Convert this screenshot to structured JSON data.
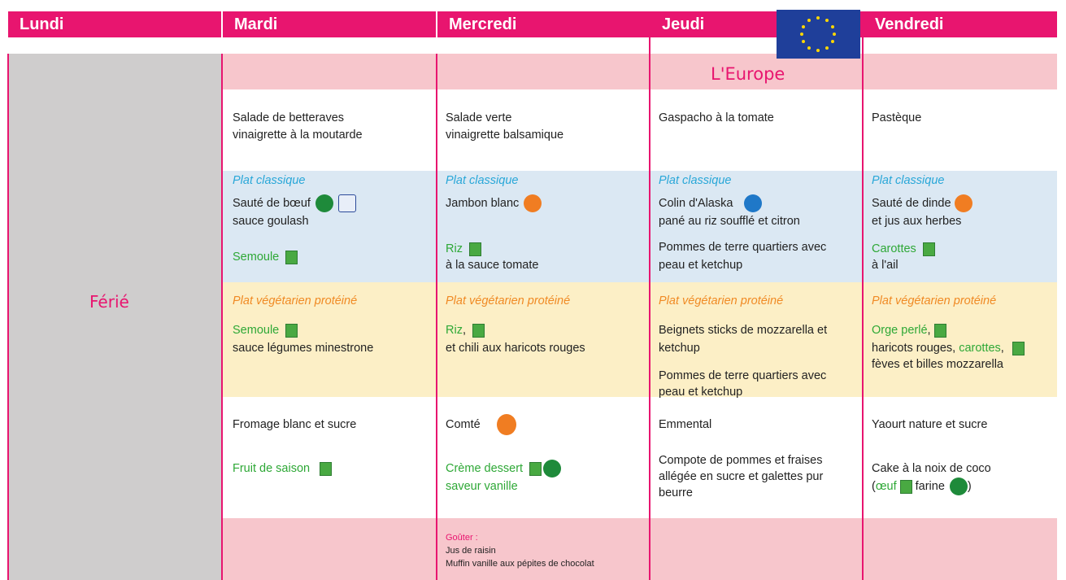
{
  "days": [
    "Lundi",
    "Mardi",
    "Mercredi",
    "Jeudi",
    "Vendredi"
  ],
  "holiday": "Férié",
  "theme": "L'Europe",
  "mardi": {
    "starter": [
      "Salade de betteraves",
      "vinaigrette à la moutarde"
    ],
    "classic_label": "Plat classique",
    "classic": [
      "Sauté de bœuf",
      "sauce goulash"
    ],
    "side": [
      "Semoule"
    ],
    "veg_label": "Plat végétarien protéiné",
    "veg": [
      "Semoule",
      "sauce légumes minestrone"
    ],
    "dairy": "Fromage blanc et sucre",
    "dessert": [
      "Fruit de saison"
    ]
  },
  "mercredi": {
    "starter": [
      "Salade verte",
      "vinaigrette balsamique"
    ],
    "classic_label": "Plat classique",
    "classic": [
      "Jambon blanc"
    ],
    "side": [
      "Riz",
      "à la sauce tomate"
    ],
    "veg_label": "Plat végétarien protéiné",
    "veg": [
      "Riz",
      ",",
      "et chili aux haricots rouges"
    ],
    "dairy": "Comté",
    "dessert": [
      "Crème dessert",
      "saveur vanille"
    ]
  },
  "jeudi": {
    "starter": [
      "Gaspacho à la tomate"
    ],
    "classic_label": "Plat classique",
    "classic": [
      "Colin d'Alaska",
      "pané au riz soufflé et citron"
    ],
    "side": [
      "Pommes de terre quartiers avec",
      "peau et ketchup"
    ],
    "veg_label": "Plat végétarien protéiné",
    "veg": [
      "Beignets sticks de mozzarella et",
      "ketchup",
      "Pommes de terre quartiers avec",
      "peau et ketchup"
    ],
    "dairy": "Emmental",
    "dessert": [
      "Compote de pommes et fraises",
      "allégée en sucre et galettes pur",
      "beurre"
    ]
  },
  "vendredi": {
    "starter": [
      "Pastèque"
    ],
    "classic_label": "Plat classique",
    "classic": [
      "Sauté de dinde",
      "et jus aux herbes"
    ],
    "side": [
      "Carottes",
      "à l'ail"
    ],
    "veg_label": "Plat végétarien protéiné",
    "veg": [
      "Orge perlé",
      ",",
      "haricots rouges, ",
      "carottes",
      ",",
      "fèves et billes mozzarella"
    ],
    "dairy": "Yaourt nature et sucre",
    "dessert": [
      "Cake à la noix de coco",
      "(",
      "œuf",
      "farine",
      ")"
    ]
  },
  "snack": {
    "label": "Goûter :",
    "items": [
      "Jus de raisin",
      "Muffin vanille aux pépites de chocolat"
    ]
  }
}
